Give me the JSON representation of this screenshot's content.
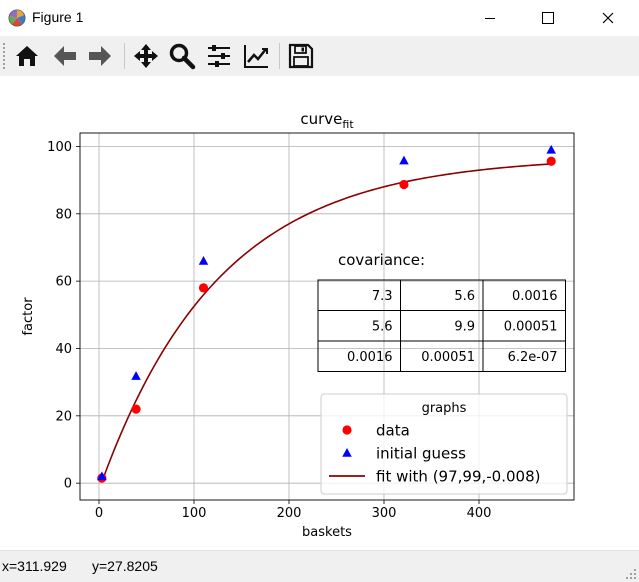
{
  "window": {
    "title": "Figure 1",
    "controls": {
      "minimize": "minimize-icon",
      "maximize": "maximize-icon",
      "close": "close-icon"
    }
  },
  "toolbar": {
    "items": [
      {
        "name": "home-icon",
        "tooltip": "Home"
      },
      {
        "name": "back-arrow-icon",
        "tooltip": "Back"
      },
      {
        "name": "forward-arrow-icon",
        "tooltip": "Forward"
      },
      {
        "name": "pan-icon",
        "tooltip": "Pan"
      },
      {
        "name": "zoom-icon",
        "tooltip": "Zoom"
      },
      {
        "name": "configure-subplots-icon",
        "tooltip": "Subplots"
      },
      {
        "name": "edit-axis-icon",
        "tooltip": "Customize"
      },
      {
        "name": "save-icon",
        "tooltip": "Save"
      }
    ]
  },
  "status": {
    "x_text": "x=311.929",
    "y_text": "y=27.8205"
  },
  "chart_data": {
    "type": "scatter",
    "title_main": "curve",
    "title_sub": "fit",
    "xlabel": "baskets",
    "ylabel": "factor",
    "xlim": [
      -20,
      500
    ],
    "ylim": [
      -5,
      104
    ],
    "xticks": [
      0,
      100,
      200,
      300,
      400
    ],
    "yticks": [
      0,
      20,
      40,
      60,
      80,
      100
    ],
    "grid": true,
    "series": [
      {
        "name": "data",
        "marker": "circle",
        "color": "#ff0000",
        "x": [
          3,
          39,
          110,
          321,
          476
        ],
        "y": [
          1.5,
          22,
          58,
          88.7,
          95.6
        ]
      },
      {
        "name": "initial guess",
        "marker": "triangle",
        "color": "#0000ff",
        "x": [
          3,
          39,
          110,
          321,
          476
        ],
        "y": [
          2,
          31.8,
          66,
          95.8,
          99
        ]
      },
      {
        "name": "fit with (97,99,-0.008)",
        "marker": "line",
        "color": "#8b0000",
        "model": {
          "a": 97,
          "b": 99,
          "c": -0.008,
          "x_range": [
            3,
            476
          ]
        }
      }
    ],
    "legend": {
      "title": "graphs",
      "location": "lower right"
    },
    "covariance_table": {
      "title": "covariance:",
      "rows": [
        [
          "7.3",
          "5.6",
          "0.0016"
        ],
        [
          "5.6",
          "9.9",
          "0.00051"
        ],
        [
          "0.0016",
          "0.00051",
          "6.2e-07"
        ]
      ]
    }
  }
}
